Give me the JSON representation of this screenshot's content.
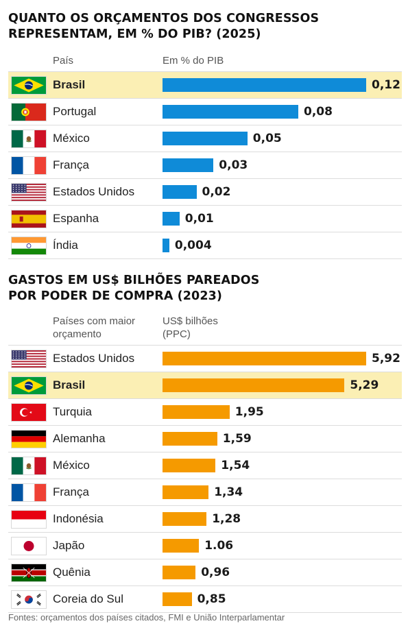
{
  "chart_data": [
    {
      "type": "bar",
      "title": "QUANTO OS ORÇAMENTOS DOS CONGRESSOS REPRESENTAM, EM % DO PIB? (2025)",
      "col_country": "País",
      "col_value": "Em % do PIB",
      "highlight": "Brasil",
      "categories": [
        "Brasil",
        "Portugal",
        "México",
        "França",
        "Estados Unidos",
        "Espanha",
        "Índia"
      ],
      "flags": [
        "brazil-flag-icon",
        "portugal-flag-icon",
        "mexico-flag-icon",
        "france-flag-icon",
        "usa-flag-icon",
        "spain-flag-icon",
        "india-flag-icon"
      ],
      "values": [
        0.12,
        0.08,
        0.05,
        0.03,
        0.02,
        0.01,
        0.004
      ],
      "labels": [
        "0,12",
        "0,08",
        "0,05",
        "0,03",
        "0,02",
        "0,01",
        "0,004"
      ],
      "color": "#0f8bd8"
    },
    {
      "type": "bar",
      "title": "GASTOS EM US$ BILHÕES PAREADOS POR PODER DE COMPRA (2023)",
      "col_country": "Países com maior orçamento",
      "col_value": "US$ bilhões (PPC)",
      "highlight": "Brasil",
      "categories": [
        "Estados Unidos",
        "Brasil",
        "Turquia",
        "Alemanha",
        "México",
        "França",
        "Indonésia",
        "Japão",
        "Quênia",
        "Coreia do Sul"
      ],
      "flags": [
        "usa-flag-icon",
        "brazil-flag-icon",
        "turkey-flag-icon",
        "germany-flag-icon",
        "mexico-flag-icon",
        "france-flag-icon",
        "indonesia-flag-icon",
        "japan-flag-icon",
        "kenya-flag-icon",
        "south-korea-flag-icon"
      ],
      "values": [
        5.92,
        5.29,
        1.95,
        1.59,
        1.54,
        1.34,
        1.28,
        1.06,
        0.96,
        0.85
      ],
      "labels": [
        "5,92",
        "5,29",
        "1,95",
        "1,59",
        "1,54",
        "1,34",
        "1,28",
        "1.06",
        "0,96",
        "0,85"
      ],
      "color": "#f59a00"
    }
  ],
  "footnote": "Fontes: orçamentos dos países citados, FMI e União Interparlamentar"
}
